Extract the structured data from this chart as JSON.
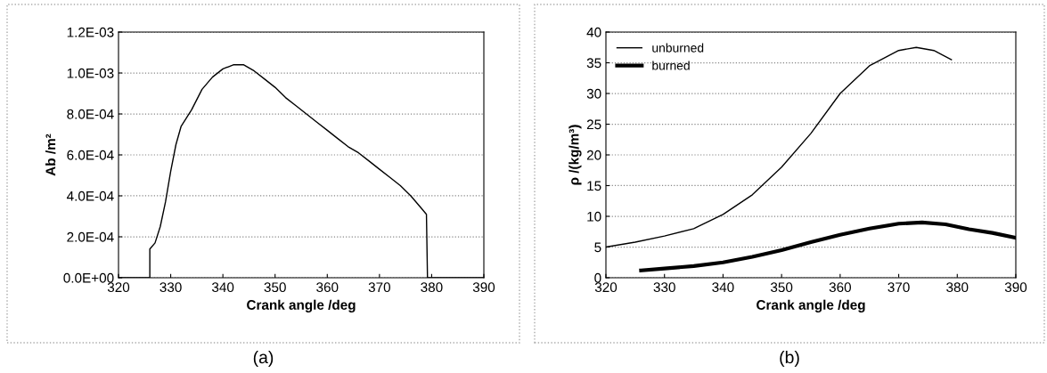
{
  "chart_data": [
    {
      "type": "line",
      "xlabel": "Crank angle /deg",
      "ylabel": "Ab /m²",
      "annotations": [
        "(a)"
      ],
      "series": [
        {
          "color": "#000000",
          "x": [
            320,
            326,
            326,
            327,
            328,
            329,
            330,
            331,
            332,
            334,
            336,
            338,
            340,
            342,
            344,
            346,
            348,
            350,
            352,
            354,
            356,
            358,
            360,
            362,
            364,
            366,
            368,
            370,
            372,
            374,
            376,
            378,
            379,
            379.2,
            390
          ],
          "values": [
            0,
            0,
            0.00014,
            0.00017,
            0.00025,
            0.00037,
            0.00052,
            0.00065,
            0.00074,
            0.00082,
            0.00092,
            0.00098,
            0.00102,
            0.00104,
            0.00104,
            0.00101,
            0.00097,
            0.00093,
            0.00088,
            0.00084,
            0.0008,
            0.00076,
            0.00072,
            0.00068,
            0.00064,
            0.00061,
            0.00057,
            0.00053,
            0.00049,
            0.00045,
            0.0004,
            0.00034,
            0.00031,
            0,
            0
          ]
        }
      ],
      "xlim": [
        320,
        390
      ],
      "xticks": [
        320,
        330,
        340,
        350,
        360,
        370,
        380,
        390
      ],
      "ylim": [
        0,
        0.0012
      ],
      "yticks": [
        {
          "value": 0,
          "label": "0.0E+00"
        },
        {
          "value": 0.0002,
          "label": "2.0E-04"
        },
        {
          "value": 0.0004,
          "label": "4.0E-04"
        },
        {
          "value": 0.0006,
          "label": "6.0E-04"
        },
        {
          "value": 0.0008,
          "label": "8.0E-04"
        },
        {
          "value": 0.001,
          "label": "1.0E-03"
        },
        {
          "value": 0.0012,
          "label": "1.2E-03"
        }
      ],
      "grid": "y",
      "legend": false
    },
    {
      "type": "line",
      "xlabel": "Crank angle /deg",
      "ylabel": "ρ /(kg/m³)",
      "annotations": [
        "(b)"
      ],
      "series": [
        {
          "name": "unburned",
          "color": "#000000",
          "x": [
            320,
            325,
            330,
            335,
            340,
            345,
            350,
            355,
            360,
            365,
            370,
            373,
            376,
            379
          ],
          "values": [
            5,
            5.8,
            6.8,
            8,
            10.3,
            13.5,
            18,
            23.5,
            30,
            34.5,
            37,
            37.5,
            37,
            35.5
          ]
        },
        {
          "name": "burned",
          "color": "#000000",
          "x": [
            326,
            330,
            335,
            340,
            345,
            350,
            355,
            360,
            365,
            370,
            374,
            378,
            382,
            386,
            390
          ],
          "values": [
            1.2,
            1.5,
            1.9,
            2.5,
            3.4,
            4.5,
            5.8,
            7,
            8,
            8.8,
            9,
            8.7,
            7.9,
            7.3,
            6.5
          ]
        }
      ],
      "xlim": [
        320,
        390
      ],
      "xticks": [
        320,
        330,
        340,
        350,
        360,
        370,
        380,
        390
      ],
      "ylim": [
        0,
        40
      ],
      "yticks": [
        0,
        5,
        10,
        15,
        20,
        25,
        30,
        35,
        40
      ],
      "grid": "y",
      "legend": "top left"
    }
  ]
}
